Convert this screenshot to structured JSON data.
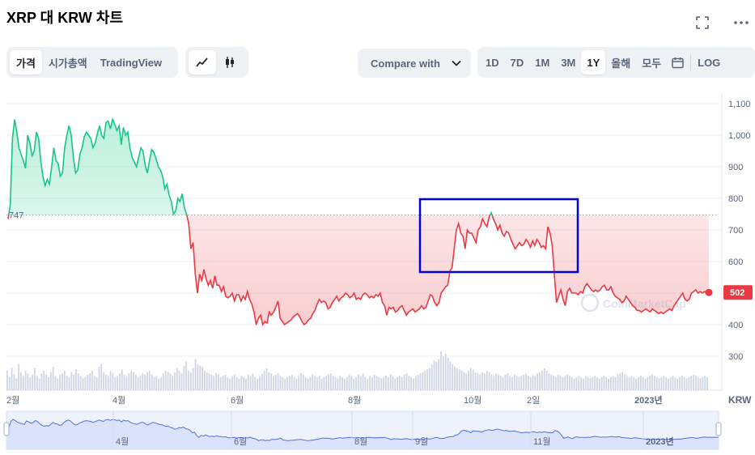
{
  "header": {
    "title": "XRP 대 KRW 차트"
  },
  "toolbar": {
    "view_tabs": [
      "가격",
      "시가총액",
      "TradingView"
    ],
    "active_view": "가격",
    "chart_type_icons": [
      "line-chart-icon",
      "candlestick-icon"
    ],
    "compare_label": "Compare with",
    "ranges": [
      "1D",
      "7D",
      "1M",
      "3M",
      "1Y",
      "올해",
      "모두"
    ],
    "active_range": "1Y",
    "log_label": "LOG"
  },
  "colors": {
    "up": "#16c784",
    "down": "#ea3943",
    "highlight_box": "#0000dd",
    "navigator_fill": "#dbe3fb",
    "navigator_line": "#5470de"
  },
  "chart_data": {
    "type": "line",
    "title": "",
    "currency": "KRW",
    "reference_price": "747",
    "current_price": "502",
    "y_ticks": [
      "1,100",
      "1,000",
      "900",
      "800",
      "700",
      "600",
      "500",
      "400",
      "300"
    ],
    "ylim": [
      200,
      1150
    ],
    "x_ticks": [
      "2월",
      "4월",
      "6월",
      "8월",
      "10월",
      "2일",
      "2023년"
    ],
    "navigator_ticks": [
      "4월",
      "6월",
      "8월",
      "9월",
      "11월",
      "2023년"
    ],
    "watermark": "CoinMarketCap",
    "series": [
      {
        "values": [
          735,
          780,
          990,
          1050,
          1010,
          960,
          940,
          920,
          895,
          1000,
          975,
          935,
          950,
          1010,
          990,
          920,
          870,
          840,
          860,
          845,
          900,
          960,
          920,
          910,
          870,
          880,
          960,
          1000,
          1030,
          1000,
          930,
          880,
          890,
          940,
          960,
          995,
          1010,
          1000,
          990,
          960,
          975,
          1005,
          1030,
          1000,
          990,
          1040,
          1045,
          1020,
          1050,
          1035,
          1015,
          1030,
          970,
          1025,
          1000,
          1010,
          960,
          930,
          915,
          900,
          930,
          960,
          950,
          905,
          880,
          920,
          955,
          945,
          925,
          900,
          890,
          870,
          830,
          845,
          810,
          790,
          750,
          760,
          800,
          790,
          815,
          770,
          750,
          720,
          640,
          660,
          560,
          500,
          560,
          540,
          575,
          545,
          525,
          540,
          515,
          555,
          525,
          525,
          505,
          520,
          490,
          485,
          490,
          500,
          475,
          495,
          495,
          475,
          490,
          480,
          505,
          480,
          465,
          440,
          400,
          420,
          430,
          400,
          410,
          405,
          440,
          430,
          440,
          455,
          475,
          420,
          410,
          400,
          405,
          410,
          415,
          425,
          430,
          435,
          425,
          410,
          400,
          405,
          415,
          420,
          435,
          445,
          465,
          480,
          470,
          475,
          470,
          450,
          455,
          470,
          480,
          490,
          475,
          485,
          490,
          500,
          495,
          485,
          490,
          500,
          480,
          485,
          480,
          495,
          500,
          495,
          485,
          490,
          485,
          495,
          490,
          500,
          470,
          460,
          430,
          455,
          450,
          455,
          440,
          445,
          455,
          460,
          445,
          430,
          440,
          445,
          450,
          440,
          445,
          450,
          460,
          450,
          455,
          475,
          495,
          490,
          470,
          460,
          470,
          500,
          510,
          520,
          525,
          570,
          580,
          640,
          700,
          720,
          690,
          680,
          640,
          700,
          690,
          690,
          675,
          660,
          700,
          710,
          735,
          720,
          710,
          740,
          755,
          735,
          720,
          700,
          715,
          690,
          680,
          695,
          690,
          670,
          655,
          640,
          650,
          660,
          650,
          655,
          670,
          660,
          645,
          665,
          650,
          670,
          660,
          645,
          650,
          640,
          710,
          690,
          650,
          560,
          470,
          490,
          510,
          480,
          460,
          505,
          515,
          500,
          500,
          500,
          495,
          505,
          500,
          520,
          530,
          520,
          510,
          505,
          510,
          505,
          510,
          520,
          525,
          510,
          510,
          520,
          500,
          490,
          485,
          480,
          470,
          475,
          490,
          480,
          470,
          460,
          455,
          445,
          445,
          440,
          445,
          450,
          445,
          440,
          450,
          445,
          440,
          435,
          440,
          435,
          440,
          445,
          450,
          445,
          460,
          470,
          480,
          490,
          500,
          480,
          475,
          480,
          500,
          505,
          510,
          500,
          505,
          500,
          505,
          500,
          502
        ],
        "reference": 747
      }
    ],
    "volume": [
      30,
      20,
      35,
      25,
      18,
      40,
      28,
      22,
      30,
      26,
      20,
      24,
      34,
      22,
      18,
      26,
      30,
      24,
      20,
      28,
      36,
      22,
      18,
      24,
      26,
      30,
      22,
      20,
      28,
      24,
      32,
      26,
      22,
      18,
      20,
      24,
      26,
      30,
      22,
      20,
      36,
      40,
      28,
      24,
      22,
      30,
      26,
      20,
      22,
      26,
      32,
      24,
      22,
      26,
      30,
      28,
      24,
      20,
      22,
      26,
      24,
      28,
      30,
      24,
      20,
      22,
      18,
      20,
      26,
      30,
      28,
      26,
      22,
      28,
      34,
      30,
      26,
      38,
      44,
      30,
      28,
      34,
      48,
      40,
      38,
      36,
      30,
      28,
      26,
      24,
      22,
      26,
      24,
      20,
      22,
      24,
      20,
      18,
      22,
      24,
      20,
      18,
      22,
      20,
      18,
      24,
      22,
      26,
      20,
      18,
      22,
      26,
      30,
      34,
      28,
      26,
      22,
      24,
      26,
      22,
      20,
      18,
      20,
      22,
      24,
      20,
      18,
      22,
      26,
      24,
      20,
      18,
      20,
      24,
      22,
      20,
      22,
      18,
      20,
      22,
      24,
      26,
      22,
      20,
      18,
      22,
      20,
      18,
      20,
      24,
      22,
      18,
      20,
      24,
      22,
      26,
      20,
      18,
      22,
      20,
      24,
      22,
      20,
      18,
      20,
      22,
      20,
      24,
      22,
      18,
      20,
      22,
      20,
      24,
      26,
      22,
      20,
      18,
      22,
      24,
      26,
      28,
      30,
      32,
      34,
      40,
      46,
      44,
      48,
      60,
      52,
      56,
      50,
      44,
      40,
      36,
      34,
      32,
      30,
      28,
      26,
      30,
      34,
      32,
      28,
      26,
      24,
      28,
      26,
      30,
      28,
      24,
      22,
      26,
      24,
      22,
      20,
      24,
      26,
      22,
      20,
      24,
      22,
      20,
      22,
      24,
      26,
      22,
      20,
      24,
      22,
      26,
      28,
      30,
      34,
      30,
      26,
      24,
      22,
      20,
      24,
      22,
      20,
      22,
      24,
      22,
      20,
      18,
      20,
      22,
      20,
      18,
      22,
      20,
      18,
      20,
      22,
      20,
      18,
      20,
      22,
      20,
      18,
      20,
      22,
      20,
      24,
      26,
      28,
      24,
      22,
      20,
      22,
      20,
      18,
      20,
      22,
      20,
      18,
      20,
      22,
      24,
      22,
      20,
      18,
      20,
      22,
      20,
      18,
      20,
      22,
      20,
      18,
      20,
      22,
      20,
      18,
      20,
      22,
      24,
      22,
      20,
      18,
      20,
      22,
      20
    ]
  }
}
